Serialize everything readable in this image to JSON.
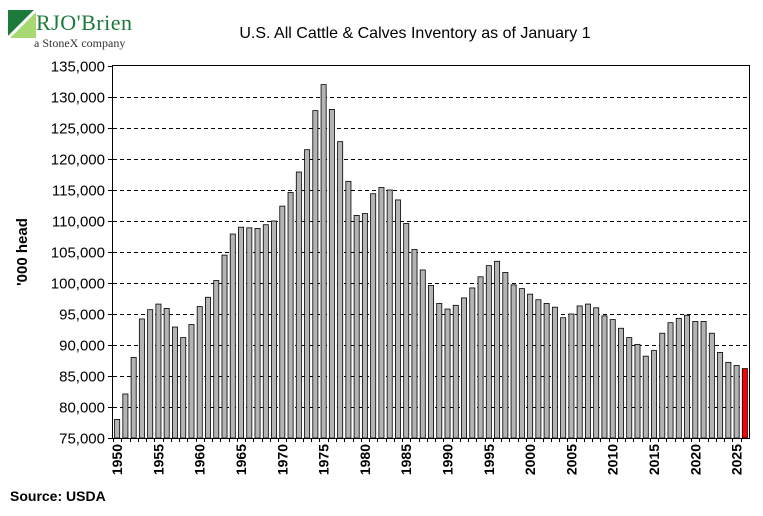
{
  "brand": {
    "name": "RJO'Brien",
    "tagline": "a StoneX company"
  },
  "source": "Source: USDA",
  "colors": {
    "bar": "#b4b4b4",
    "highlight": "#ff0000",
    "logo_green": "#1c7a3a",
    "logo_light": "#8cc63f"
  },
  "chart_data": {
    "type": "bar",
    "title": "U.S. All Cattle & Calves Inventory as of January 1",
    "xlabel": "",
    "ylabel": "'000 head",
    "ylim": [
      75000,
      135000
    ],
    "y_ticks": [
      "75,000",
      "80,000",
      "85,000",
      "90,000",
      "95,000",
      "100,000",
      "105,000",
      "110,000",
      "115,000",
      "120,000",
      "125,000",
      "130,000",
      "135,000"
    ],
    "x_tick_labels": [
      "1950",
      "1955",
      "1960",
      "1965",
      "1970",
      "1975",
      "1980",
      "1985",
      "1990",
      "1995",
      "2000",
      "2005",
      "2010",
      "2015",
      "2020",
      "2025"
    ],
    "grid": true,
    "highlight_category": "2026",
    "categories": [
      "1950",
      "1951",
      "1952",
      "1953",
      "1954",
      "1955",
      "1956",
      "1957",
      "1958",
      "1959",
      "1960",
      "1961",
      "1962",
      "1963",
      "1964",
      "1965",
      "1966",
      "1967",
      "1968",
      "1969",
      "1970",
      "1971",
      "1972",
      "1973",
      "1974",
      "1975",
      "1976",
      "1977",
      "1978",
      "1979",
      "1980",
      "1981",
      "1982",
      "1983",
      "1984",
      "1985",
      "1986",
      "1987",
      "1988",
      "1989",
      "1990",
      "1991",
      "1992",
      "1993",
      "1994",
      "1995",
      "1996",
      "1997",
      "1998",
      "1999",
      "2000",
      "2001",
      "2002",
      "2003",
      "2004",
      "2005",
      "2006",
      "2007",
      "2008",
      "2009",
      "2010",
      "2011",
      "2012",
      "2013",
      "2014",
      "2015",
      "2016",
      "2017",
      "2018",
      "2019",
      "2020",
      "2021",
      "2022",
      "2023",
      "2024",
      "2025",
      "2026"
    ],
    "values": [
      78000,
      82100,
      88000,
      94200,
      95700,
      96600,
      95900,
      92900,
      91200,
      93300,
      96200,
      97700,
      100400,
      104500,
      107900,
      109000,
      108900,
      108800,
      109400,
      110000,
      112400,
      114600,
      117900,
      121500,
      127800,
      132000,
      128000,
      122800,
      116400,
      110900,
      111200,
      114400,
      115400,
      115000,
      113400,
      109600,
      105400,
      102100,
      99600,
      96700,
      95800,
      96400,
      97600,
      99200,
      101000,
      102800,
      103500,
      101700,
      99700,
      99100,
      98200,
      97300,
      96700,
      96100,
      94400,
      95000,
      96300,
      96600,
      96000,
      94700,
      94100,
      92700,
      91200,
      90100,
      88200,
      89100,
      91900,
      93600,
      94300,
      94800,
      93800,
      93800,
      91900,
      88800,
      87200,
      86700,
      86200
    ]
  }
}
